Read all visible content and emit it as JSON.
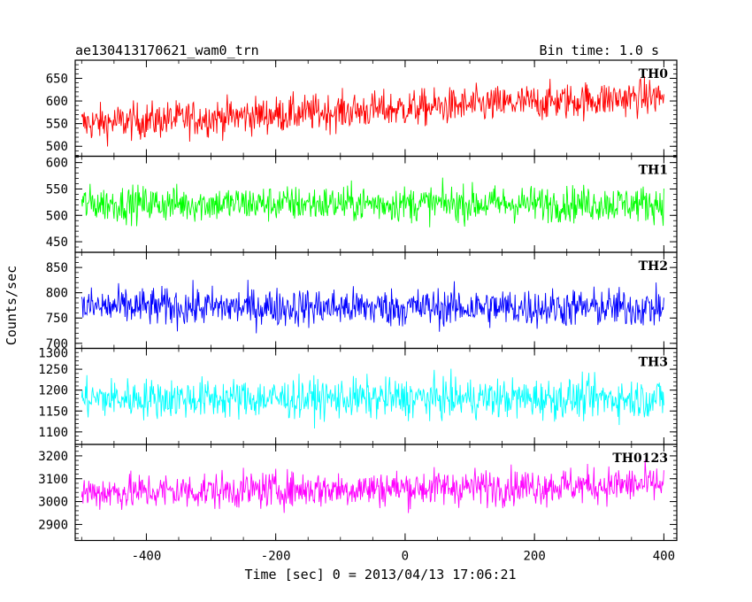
{
  "header": {
    "left_title": "ae130413170621_wam0_trn",
    "right_title": "Bin time: 1.0 s"
  },
  "chart_data": {
    "type": "line",
    "title": "ae130413170621_wam0_trn",
    "subtitle": "Bin time: 1.0 s",
    "xlabel": "Time [sec] 0 = 2013/04/13 17:06:21",
    "ylabel": "Counts/sec",
    "xlim": [
      -510,
      420
    ],
    "x_ticks": [
      -400,
      -200,
      0,
      200,
      400
    ],
    "x_range": [
      -500,
      400
    ],
    "series": [
      {
        "name": "TH0",
        "color": "#ff0000",
        "ylim": [
          478,
          690
        ],
        "y_ticks": [
          500,
          550,
          600,
          650
        ],
        "start_mean": 550,
        "end_mean": 610,
        "noise": 38
      },
      {
        "name": "TH1",
        "color": "#00ff00",
        "ylim": [
          430,
          612
        ],
        "y_ticks": [
          450,
          500,
          550,
          600
        ],
        "start_mean": 522,
        "end_mean": 522,
        "noise": 32
      },
      {
        "name": "TH2",
        "color": "#0000ff",
        "ylim": [
          690,
          880
        ],
        "y_ticks": [
          700,
          750,
          800,
          850
        ],
        "start_mean": 772,
        "end_mean": 770,
        "noise": 36
      },
      {
        "name": "TH3",
        "color": "#00ffff",
        "ylim": [
          1070,
          1300
        ],
        "y_ticks": [
          1100,
          1150,
          1200,
          1250,
          1300
        ],
        "start_mean": 1180,
        "end_mean": 1180,
        "noise": 45
      },
      {
        "name": "TH0123",
        "color": "#ff00ff",
        "ylim": [
          2830,
          3250
        ],
        "y_ticks": [
          2900,
          3000,
          3100,
          3200
        ],
        "start_mean": 3040,
        "end_mean": 3075,
        "noise": 75
      }
    ]
  }
}
